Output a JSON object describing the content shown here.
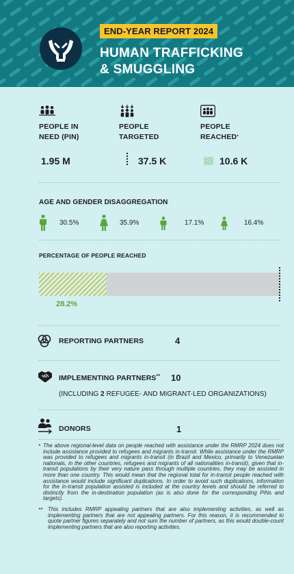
{
  "header": {
    "badge": "END-YEAR REPORT 2024",
    "title_line1": "HUMAN TRAFFICKING",
    "title_line2": "& SMUGGLING",
    "logo_icon": "hands-freeing-icon"
  },
  "colors": {
    "header_bg": "#147a82",
    "badge_bg": "#f7c52b",
    "accent_green": "#5aa63c",
    "background": "#d2eff1"
  },
  "stats": [
    {
      "label1": "PEOPLE IN",
      "label2": "NEED (PIN)",
      "value": "1.95 M",
      "icon": "people-group-icon"
    },
    {
      "label1": "PEOPLE",
      "label2": "TARGETED",
      "value": "37.5 K",
      "icon": "people-targeted-icon"
    },
    {
      "label1": "PEOPLE",
      "label2": "REACHED",
      "label_mark": "*",
      "value": "10.6 K",
      "icon": "people-reached-icon"
    }
  ],
  "age_gender": {
    "title": "AGE AND GENDER DISAGGREGATION",
    "items": [
      {
        "pct": "30.5%",
        "icon": "man-icon"
      },
      {
        "pct": "35.9%",
        "icon": "woman-icon"
      },
      {
        "pct": "17.1%",
        "icon": "boy-icon"
      },
      {
        "pct": "16.4%",
        "icon": "girl-icon"
      }
    ]
  },
  "reached": {
    "title": "PERCENTAGE OF PEOPLE REACHED",
    "pct_label": "28.2%",
    "fraction": 0.282
  },
  "partners": {
    "reporting_label": "REPORTING PARTNERS",
    "reporting_value": "4",
    "implementing_label": "IMPLEMENTING PARTNERS",
    "implementing_mark": "**",
    "implementing_value": "10",
    "note_prefix": "(INCLUDING ",
    "note_number": "2",
    "note_suffix": " REFUGEE- AND MIGRANT-LED ORGANIZATIONS)",
    "donors_label": "DONORS",
    "donors_value": "1"
  },
  "footnotes": {
    "mark1": "*",
    "text1": "The above regional-level data on people reached with assistance under the RMRP 2024 does not include assistance provided to refugees and migrants in-transit. While assistance under the RMRP was provided to refugees and migrants in-transit (in Brazil and Mexico, primarily to Venezuelan nationals, in the other countries, refugees and migrants of all nationalities in-transit), given that in-transit populations by their very nature pass through multiple countries, they may be assisted in more than one country. This would mean that the regional total for in-transit people reached with assistance would include significant duplications. In order to avoid such duplications, information for the in-transit population assisted is included at the country levels and should be referred to distinctly from the in-destination population (as is also done for the corresponding PiNs and targets).",
    "mark2": "**",
    "text2": "This includes RMRP appealing partners that are also implementing activities, as well as implementing partners that are not appealing partners. For this reason, it is recommended to quote partner figures separately and not sum the number of partners, as this would double-count implementing partners that are also reporting activities."
  }
}
